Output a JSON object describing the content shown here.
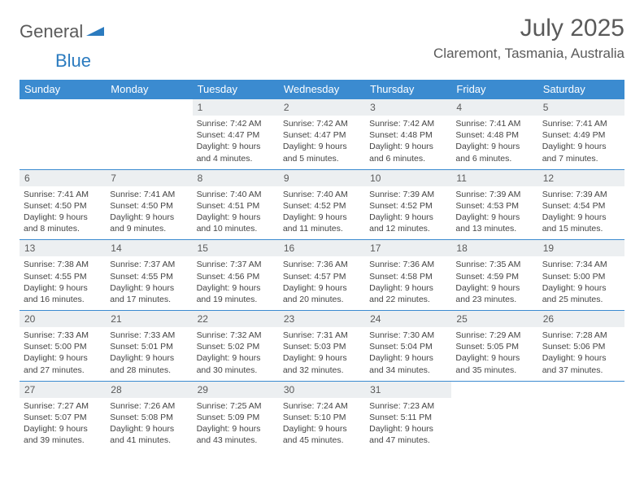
{
  "logo": {
    "text1": "General",
    "text2": "Blue"
  },
  "title": "July 2025",
  "location": "Claremont, Tasmania, Australia",
  "colors": {
    "header_bg": "#3b8bd0",
    "header_text": "#ffffff",
    "daynum_bg": "#eceff1",
    "text": "#5a5a5a",
    "accent": "#2b7bbf"
  },
  "weekdays": [
    "Sunday",
    "Monday",
    "Tuesday",
    "Wednesday",
    "Thursday",
    "Friday",
    "Saturday"
  ],
  "weeks": [
    [
      {
        "day": "",
        "sunrise": "",
        "sunset": "",
        "daylight1": "",
        "daylight2": ""
      },
      {
        "day": "",
        "sunrise": "",
        "sunset": "",
        "daylight1": "",
        "daylight2": ""
      },
      {
        "day": "1",
        "sunrise": "Sunrise: 7:42 AM",
        "sunset": "Sunset: 4:47 PM",
        "daylight1": "Daylight: 9 hours",
        "daylight2": "and 4 minutes."
      },
      {
        "day": "2",
        "sunrise": "Sunrise: 7:42 AM",
        "sunset": "Sunset: 4:47 PM",
        "daylight1": "Daylight: 9 hours",
        "daylight2": "and 5 minutes."
      },
      {
        "day": "3",
        "sunrise": "Sunrise: 7:42 AM",
        "sunset": "Sunset: 4:48 PM",
        "daylight1": "Daylight: 9 hours",
        "daylight2": "and 6 minutes."
      },
      {
        "day": "4",
        "sunrise": "Sunrise: 7:41 AM",
        "sunset": "Sunset: 4:48 PM",
        "daylight1": "Daylight: 9 hours",
        "daylight2": "and 6 minutes."
      },
      {
        "day": "5",
        "sunrise": "Sunrise: 7:41 AM",
        "sunset": "Sunset: 4:49 PM",
        "daylight1": "Daylight: 9 hours",
        "daylight2": "and 7 minutes."
      }
    ],
    [
      {
        "day": "6",
        "sunrise": "Sunrise: 7:41 AM",
        "sunset": "Sunset: 4:50 PM",
        "daylight1": "Daylight: 9 hours",
        "daylight2": "and 8 minutes."
      },
      {
        "day": "7",
        "sunrise": "Sunrise: 7:41 AM",
        "sunset": "Sunset: 4:50 PM",
        "daylight1": "Daylight: 9 hours",
        "daylight2": "and 9 minutes."
      },
      {
        "day": "8",
        "sunrise": "Sunrise: 7:40 AM",
        "sunset": "Sunset: 4:51 PM",
        "daylight1": "Daylight: 9 hours",
        "daylight2": "and 10 minutes."
      },
      {
        "day": "9",
        "sunrise": "Sunrise: 7:40 AM",
        "sunset": "Sunset: 4:52 PM",
        "daylight1": "Daylight: 9 hours",
        "daylight2": "and 11 minutes."
      },
      {
        "day": "10",
        "sunrise": "Sunrise: 7:39 AM",
        "sunset": "Sunset: 4:52 PM",
        "daylight1": "Daylight: 9 hours",
        "daylight2": "and 12 minutes."
      },
      {
        "day": "11",
        "sunrise": "Sunrise: 7:39 AM",
        "sunset": "Sunset: 4:53 PM",
        "daylight1": "Daylight: 9 hours",
        "daylight2": "and 13 minutes."
      },
      {
        "day": "12",
        "sunrise": "Sunrise: 7:39 AM",
        "sunset": "Sunset: 4:54 PM",
        "daylight1": "Daylight: 9 hours",
        "daylight2": "and 15 minutes."
      }
    ],
    [
      {
        "day": "13",
        "sunrise": "Sunrise: 7:38 AM",
        "sunset": "Sunset: 4:55 PM",
        "daylight1": "Daylight: 9 hours",
        "daylight2": "and 16 minutes."
      },
      {
        "day": "14",
        "sunrise": "Sunrise: 7:37 AM",
        "sunset": "Sunset: 4:55 PM",
        "daylight1": "Daylight: 9 hours",
        "daylight2": "and 17 minutes."
      },
      {
        "day": "15",
        "sunrise": "Sunrise: 7:37 AM",
        "sunset": "Sunset: 4:56 PM",
        "daylight1": "Daylight: 9 hours",
        "daylight2": "and 19 minutes."
      },
      {
        "day": "16",
        "sunrise": "Sunrise: 7:36 AM",
        "sunset": "Sunset: 4:57 PM",
        "daylight1": "Daylight: 9 hours",
        "daylight2": "and 20 minutes."
      },
      {
        "day": "17",
        "sunrise": "Sunrise: 7:36 AM",
        "sunset": "Sunset: 4:58 PM",
        "daylight1": "Daylight: 9 hours",
        "daylight2": "and 22 minutes."
      },
      {
        "day": "18",
        "sunrise": "Sunrise: 7:35 AM",
        "sunset": "Sunset: 4:59 PM",
        "daylight1": "Daylight: 9 hours",
        "daylight2": "and 23 minutes."
      },
      {
        "day": "19",
        "sunrise": "Sunrise: 7:34 AM",
        "sunset": "Sunset: 5:00 PM",
        "daylight1": "Daylight: 9 hours",
        "daylight2": "and 25 minutes."
      }
    ],
    [
      {
        "day": "20",
        "sunrise": "Sunrise: 7:33 AM",
        "sunset": "Sunset: 5:00 PM",
        "daylight1": "Daylight: 9 hours",
        "daylight2": "and 27 minutes."
      },
      {
        "day": "21",
        "sunrise": "Sunrise: 7:33 AM",
        "sunset": "Sunset: 5:01 PM",
        "daylight1": "Daylight: 9 hours",
        "daylight2": "and 28 minutes."
      },
      {
        "day": "22",
        "sunrise": "Sunrise: 7:32 AM",
        "sunset": "Sunset: 5:02 PM",
        "daylight1": "Daylight: 9 hours",
        "daylight2": "and 30 minutes."
      },
      {
        "day": "23",
        "sunrise": "Sunrise: 7:31 AM",
        "sunset": "Sunset: 5:03 PM",
        "daylight1": "Daylight: 9 hours",
        "daylight2": "and 32 minutes."
      },
      {
        "day": "24",
        "sunrise": "Sunrise: 7:30 AM",
        "sunset": "Sunset: 5:04 PM",
        "daylight1": "Daylight: 9 hours",
        "daylight2": "and 34 minutes."
      },
      {
        "day": "25",
        "sunrise": "Sunrise: 7:29 AM",
        "sunset": "Sunset: 5:05 PM",
        "daylight1": "Daylight: 9 hours",
        "daylight2": "and 35 minutes."
      },
      {
        "day": "26",
        "sunrise": "Sunrise: 7:28 AM",
        "sunset": "Sunset: 5:06 PM",
        "daylight1": "Daylight: 9 hours",
        "daylight2": "and 37 minutes."
      }
    ],
    [
      {
        "day": "27",
        "sunrise": "Sunrise: 7:27 AM",
        "sunset": "Sunset: 5:07 PM",
        "daylight1": "Daylight: 9 hours",
        "daylight2": "and 39 minutes."
      },
      {
        "day": "28",
        "sunrise": "Sunrise: 7:26 AM",
        "sunset": "Sunset: 5:08 PM",
        "daylight1": "Daylight: 9 hours",
        "daylight2": "and 41 minutes."
      },
      {
        "day": "29",
        "sunrise": "Sunrise: 7:25 AM",
        "sunset": "Sunset: 5:09 PM",
        "daylight1": "Daylight: 9 hours",
        "daylight2": "and 43 minutes."
      },
      {
        "day": "30",
        "sunrise": "Sunrise: 7:24 AM",
        "sunset": "Sunset: 5:10 PM",
        "daylight1": "Daylight: 9 hours",
        "daylight2": "and 45 minutes."
      },
      {
        "day": "31",
        "sunrise": "Sunrise: 7:23 AM",
        "sunset": "Sunset: 5:11 PM",
        "daylight1": "Daylight: 9 hours",
        "daylight2": "and 47 minutes."
      },
      {
        "day": "",
        "sunrise": "",
        "sunset": "",
        "daylight1": "",
        "daylight2": ""
      },
      {
        "day": "",
        "sunrise": "",
        "sunset": "",
        "daylight1": "",
        "daylight2": ""
      }
    ]
  ]
}
